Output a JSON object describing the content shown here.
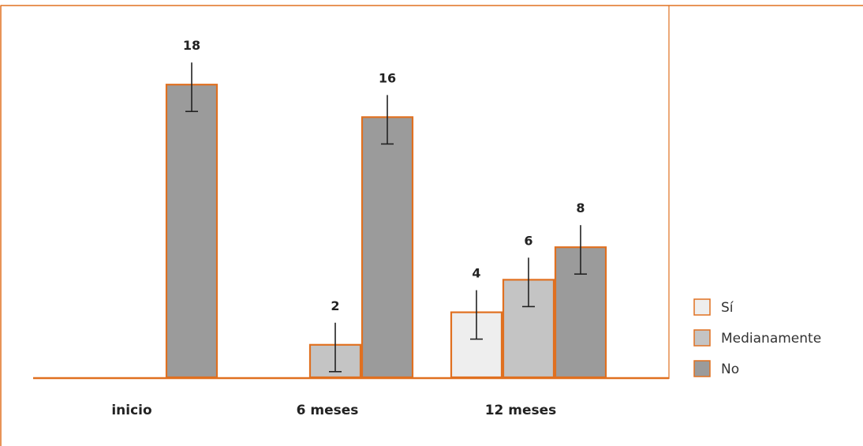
{
  "chart_data": {
    "type": "bar",
    "title": "",
    "xlabel": "",
    "ylabel": "",
    "categories": [
      "inicio",
      "6 meses",
      "12 meses"
    ],
    "series": [
      {
        "name": "Sí",
        "values": [
          0,
          0,
          4
        ],
        "color": "#eeeeee"
      },
      {
        "name": "Medianamente",
        "values": [
          0,
          2,
          6
        ],
        "color": "#c4c4c4"
      },
      {
        "name": "No",
        "values": [
          18,
          16,
          8
        ],
        "color": "#9b9b9b"
      }
    ],
    "ylim": [
      0,
      20
    ],
    "grid": false,
    "legend": "right",
    "bar_edge_color": "#e07020",
    "frame_color": "#e07020"
  }
}
